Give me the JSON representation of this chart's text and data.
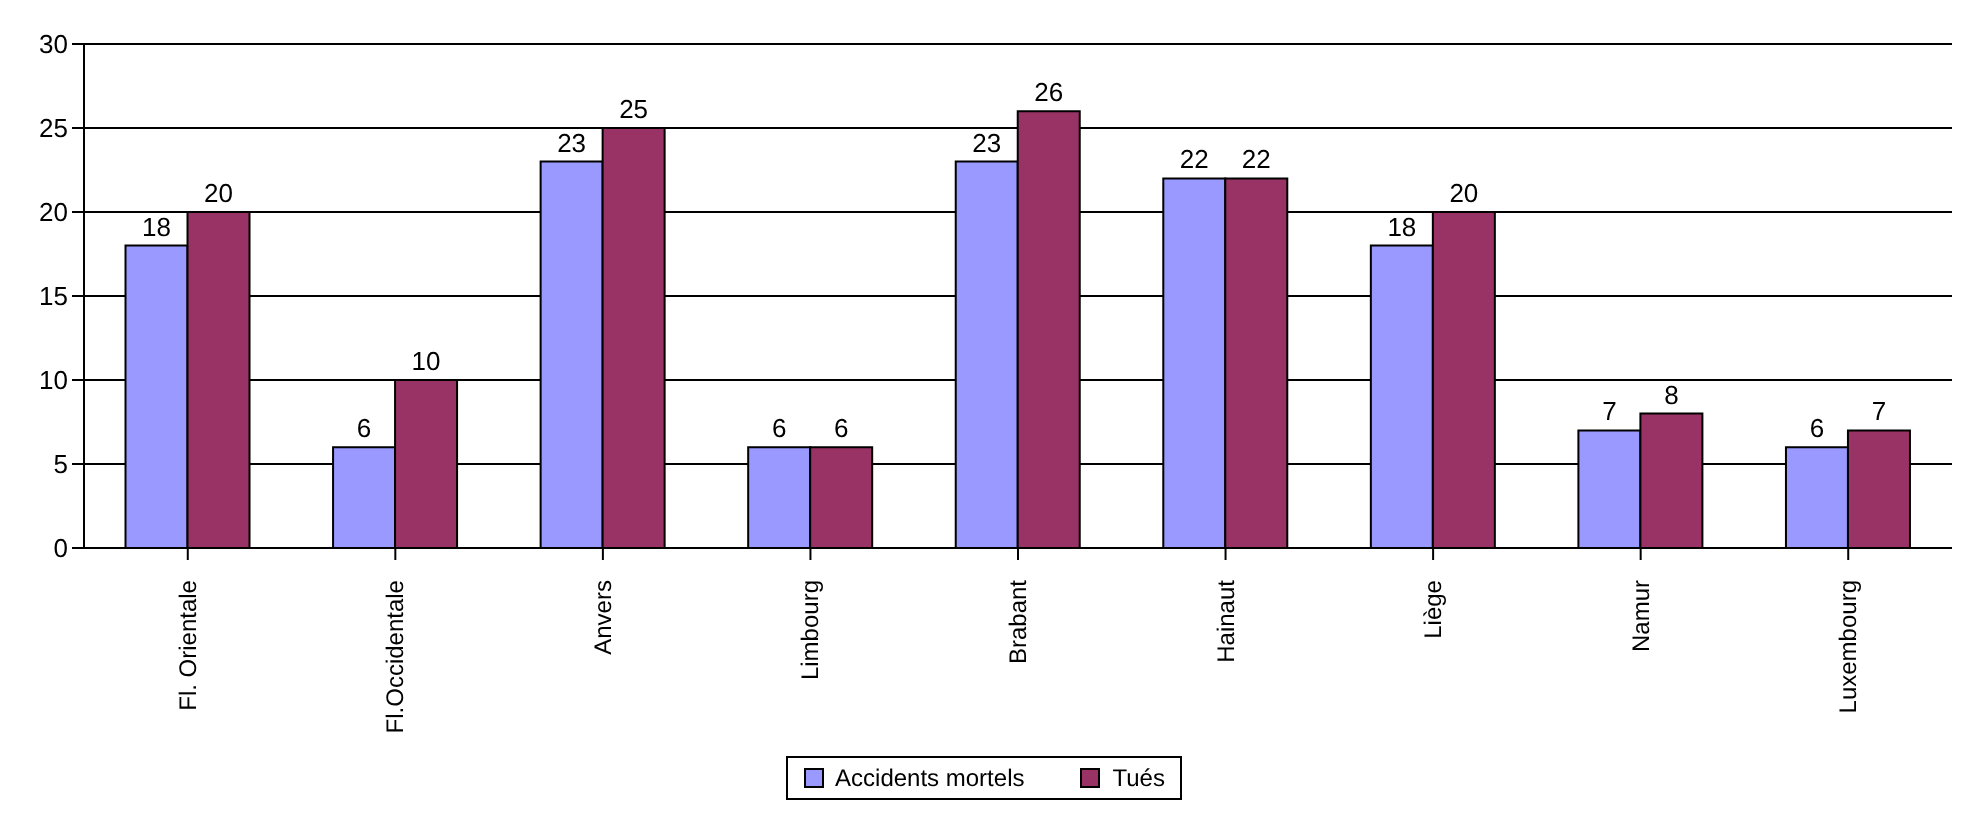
{
  "chart_data": {
    "type": "bar",
    "categories": [
      "Fl. Orientale",
      "Fl.Occidentale",
      "Anvers",
      "Limbourg",
      "Brabant",
      "Hainaut",
      "Liège",
      "Namur",
      "Luxembourg"
    ],
    "series": [
      {
        "name": "Accidents mortels",
        "color": "#9999ff",
        "values": [
          18,
          6,
          23,
          6,
          23,
          22,
          18,
          7,
          6
        ]
      },
      {
        "name": "Tués",
        "color": "#993366",
        "values": [
          20,
          10,
          25,
          6,
          26,
          22,
          20,
          8,
          7
        ]
      }
    ],
    "ylim": [
      0,
      30
    ],
    "yticks": [
      0,
      5,
      10,
      15,
      20,
      25,
      30
    ],
    "grid": "y",
    "legend": "bottom",
    "data_labels": true
  }
}
